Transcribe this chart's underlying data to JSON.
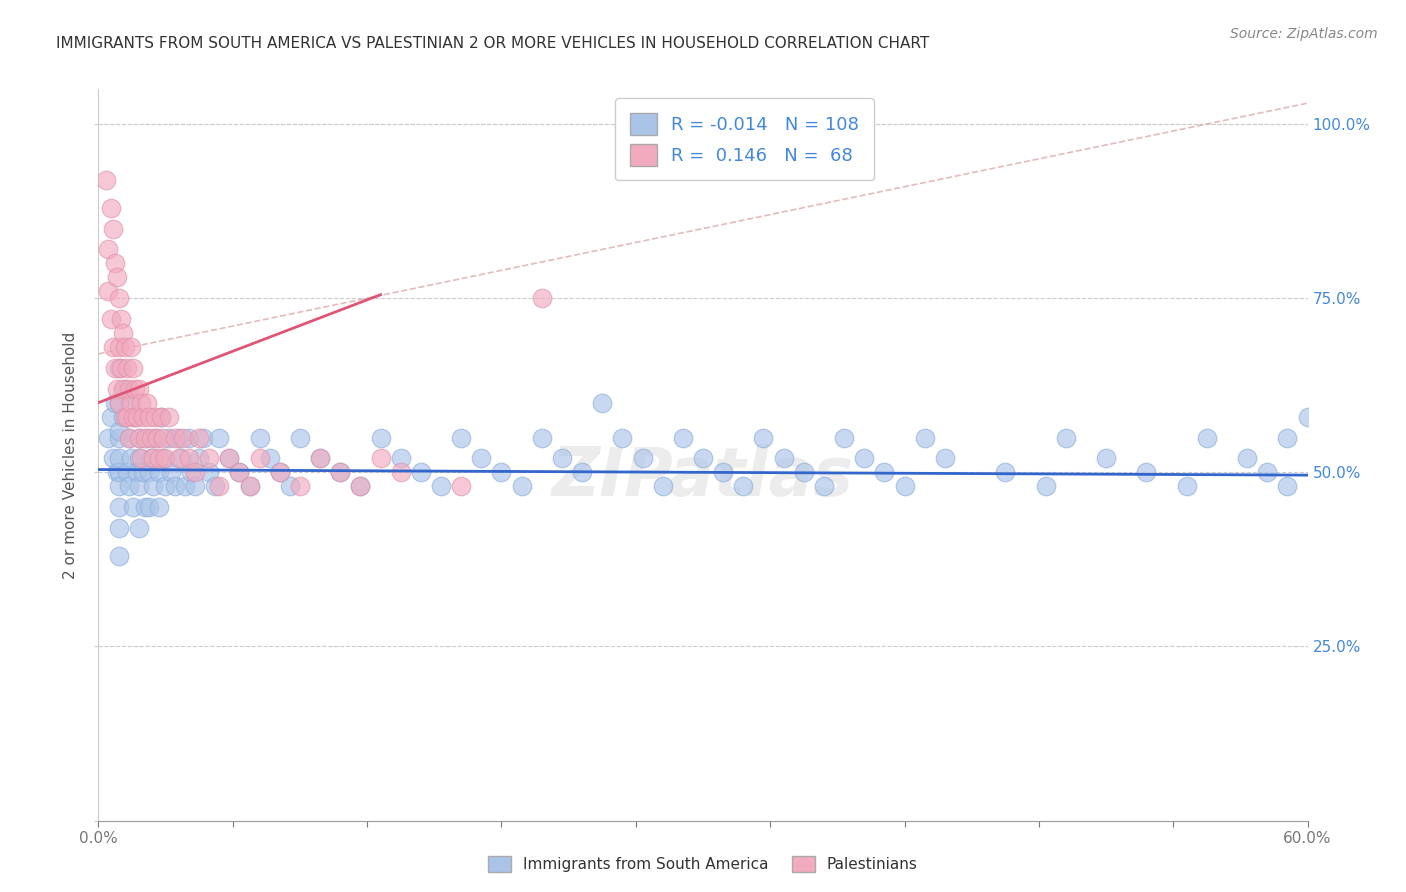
{
  "title": "IMMIGRANTS FROM SOUTH AMERICA VS PALESTINIAN 2 OR MORE VEHICLES IN HOUSEHOLD CORRELATION CHART",
  "source": "Source: ZipAtlas.com",
  "ylabel": "2 or more Vehicles in Household",
  "xlim": [
    0.0,
    0.6
  ],
  "ylim": [
    0.0,
    1.05
  ],
  "R_blue": -0.014,
  "N_blue": 108,
  "R_pink": 0.146,
  "N_pink": 68,
  "blue_color": "#aac4e8",
  "pink_color": "#f2aabe",
  "blue_line_color": "#3366cc",
  "pink_line_color": "#e05575",
  "diag_color": "#e8b0c0",
  "legend_label_blue": "Immigrants from South America",
  "legend_label_pink": "Palestinians",
  "watermark": "ZIPatlas",
  "blue_scatter_x": [
    0.005,
    0.006,
    0.007,
    0.008,
    0.009,
    0.01,
    0.01,
    0.01,
    0.01,
    0.01,
    0.01,
    0.01,
    0.01,
    0.01,
    0.01,
    0.012,
    0.013,
    0.014,
    0.015,
    0.015,
    0.015,
    0.016,
    0.017,
    0.018,
    0.019,
    0.02,
    0.02,
    0.02,
    0.02,
    0.022,
    0.023,
    0.024,
    0.025,
    0.025,
    0.026,
    0.027,
    0.028,
    0.03,
    0.03,
    0.031,
    0.032,
    0.033,
    0.035,
    0.036,
    0.038,
    0.04,
    0.041,
    0.043,
    0.045,
    0.046,
    0.048,
    0.05,
    0.052,
    0.055,
    0.058,
    0.06,
    0.065,
    0.07,
    0.075,
    0.08,
    0.085,
    0.09,
    0.095,
    0.1,
    0.11,
    0.12,
    0.13,
    0.14,
    0.15,
    0.16,
    0.17,
    0.18,
    0.19,
    0.2,
    0.21,
    0.22,
    0.23,
    0.24,
    0.25,
    0.26,
    0.27,
    0.28,
    0.29,
    0.3,
    0.31,
    0.32,
    0.33,
    0.34,
    0.35,
    0.36,
    0.37,
    0.38,
    0.39,
    0.4,
    0.41,
    0.42,
    0.45,
    0.47,
    0.48,
    0.5,
    0.52,
    0.54,
    0.55,
    0.57,
    0.58,
    0.59,
    0.59,
    0.6
  ],
  "blue_scatter_y": [
    0.55,
    0.58,
    0.52,
    0.6,
    0.5,
    0.65,
    0.6,
    0.55,
    0.5,
    0.48,
    0.45,
    0.42,
    0.38,
    0.52,
    0.56,
    0.58,
    0.62,
    0.5,
    0.55,
    0.6,
    0.48,
    0.52,
    0.45,
    0.58,
    0.5,
    0.55,
    0.48,
    0.42,
    0.52,
    0.5,
    0.45,
    0.55,
    0.5,
    0.45,
    0.52,
    0.48,
    0.55,
    0.5,
    0.45,
    0.58,
    0.52,
    0.48,
    0.55,
    0.5,
    0.48,
    0.55,
    0.52,
    0.48,
    0.55,
    0.5,
    0.48,
    0.52,
    0.55,
    0.5,
    0.48,
    0.55,
    0.52,
    0.5,
    0.48,
    0.55,
    0.52,
    0.5,
    0.48,
    0.55,
    0.52,
    0.5,
    0.48,
    0.55,
    0.52,
    0.5,
    0.48,
    0.55,
    0.52,
    0.5,
    0.48,
    0.55,
    0.52,
    0.5,
    0.6,
    0.55,
    0.52,
    0.48,
    0.55,
    0.52,
    0.5,
    0.48,
    0.55,
    0.52,
    0.5,
    0.48,
    0.55,
    0.52,
    0.5,
    0.48,
    0.55,
    0.52,
    0.5,
    0.48,
    0.55,
    0.52,
    0.5,
    0.48,
    0.55,
    0.52,
    0.5,
    0.48,
    0.55,
    0.58
  ],
  "pink_scatter_x": [
    0.004,
    0.005,
    0.005,
    0.006,
    0.006,
    0.007,
    0.007,
    0.008,
    0.008,
    0.009,
    0.009,
    0.01,
    0.01,
    0.01,
    0.011,
    0.011,
    0.012,
    0.012,
    0.013,
    0.013,
    0.014,
    0.014,
    0.015,
    0.015,
    0.016,
    0.016,
    0.017,
    0.017,
    0.018,
    0.019,
    0.02,
    0.02,
    0.021,
    0.021,
    0.022,
    0.023,
    0.024,
    0.025,
    0.026,
    0.027,
    0.028,
    0.029,
    0.03,
    0.031,
    0.032,
    0.033,
    0.035,
    0.038,
    0.04,
    0.042,
    0.045,
    0.048,
    0.05,
    0.055,
    0.06,
    0.065,
    0.07,
    0.075,
    0.08,
    0.09,
    0.1,
    0.11,
    0.12,
    0.13,
    0.14,
    0.15,
    0.18,
    0.22
  ],
  "pink_scatter_y": [
    0.92,
    0.82,
    0.76,
    0.88,
    0.72,
    0.85,
    0.68,
    0.8,
    0.65,
    0.78,
    0.62,
    0.75,
    0.68,
    0.6,
    0.72,
    0.65,
    0.7,
    0.62,
    0.68,
    0.58,
    0.65,
    0.58,
    0.62,
    0.55,
    0.68,
    0.6,
    0.65,
    0.58,
    0.62,
    0.58,
    0.62,
    0.55,
    0.6,
    0.52,
    0.58,
    0.55,
    0.6,
    0.58,
    0.55,
    0.52,
    0.58,
    0.55,
    0.52,
    0.58,
    0.55,
    0.52,
    0.58,
    0.55,
    0.52,
    0.55,
    0.52,
    0.5,
    0.55,
    0.52,
    0.48,
    0.52,
    0.5,
    0.48,
    0.52,
    0.5,
    0.48,
    0.52,
    0.5,
    0.48,
    0.52,
    0.5,
    0.48,
    0.75
  ]
}
